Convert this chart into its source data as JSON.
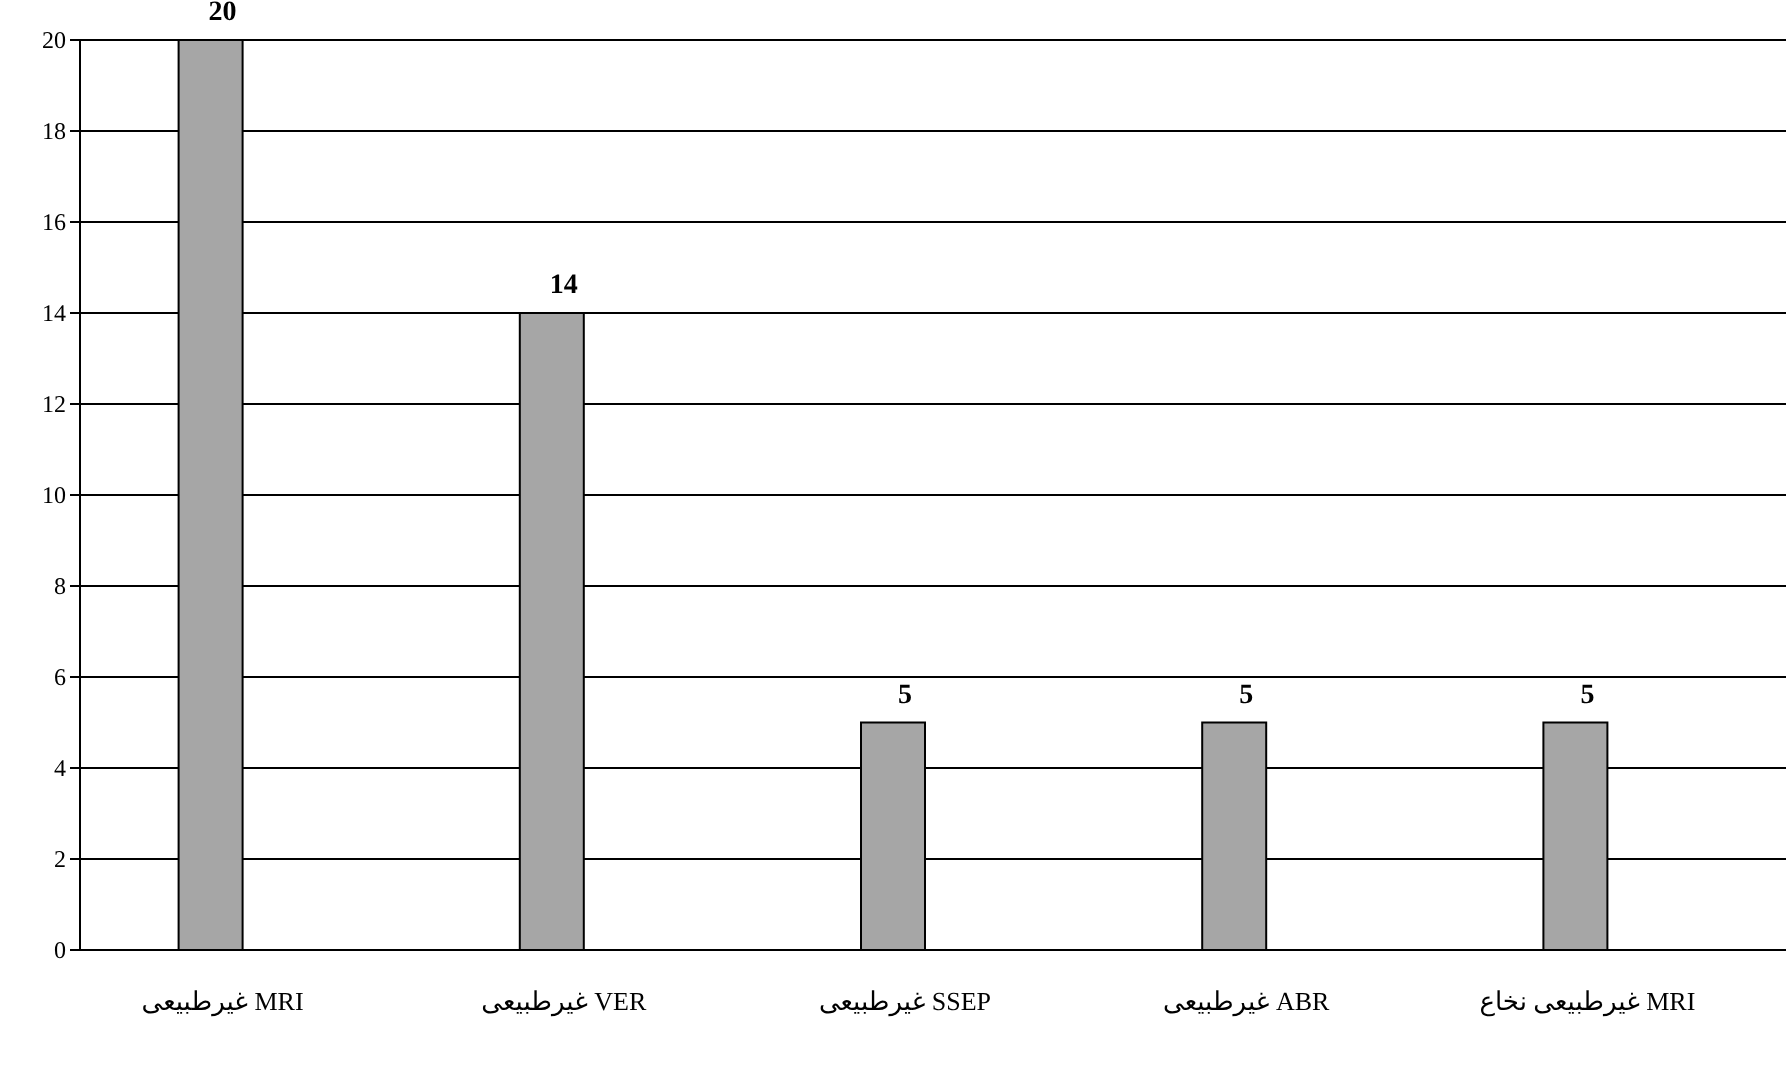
{
  "chart_data": {
    "type": "bar",
    "categories": [
      "MRI غیرطبیعی",
      "VER غیرطبیعی",
      "SSEP غیرطبیعی",
      "ABR غیرطبیعی",
      "MRI غیرطبیعی نخاع"
    ],
    "values": [
      20,
      14,
      5,
      5,
      5
    ],
    "color": "#a6a6a6",
    "ylim": [
      0,
      20
    ],
    "yticks": [
      0,
      2,
      4,
      6,
      8,
      10,
      12,
      14,
      16,
      18,
      20
    ],
    "grid": "y",
    "data_labels": true
  }
}
